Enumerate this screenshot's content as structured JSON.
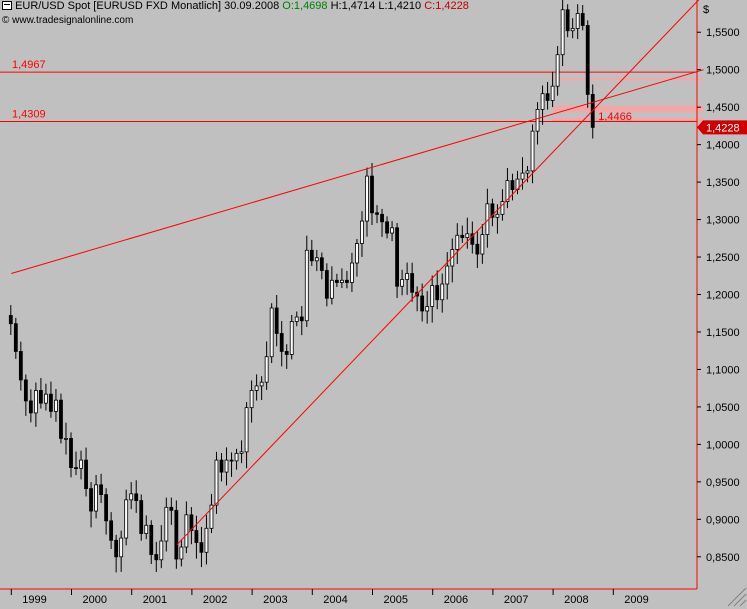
{
  "header": {
    "symbol": "EUR/USD Spot [EURUSD FXD",
    "period": "Monatlich]",
    "date": "30.09.2008",
    "open_label": "O:",
    "open": "1,4698",
    "high_label": "H:",
    "high": "1,4714",
    "low_label": "L:",
    "low": "1,4210",
    "close_label": "C:",
    "close": "1,4228",
    "source": "www.tradesignalonline.com"
  },
  "colors": {
    "background": "#c0c0c0",
    "line": "#ff0000",
    "candle": "#000000",
    "candle_up_fill": "#ffffff",
    "zone": "#f2a8a8"
  },
  "chart_data": {
    "type": "candlestick",
    "title": "",
    "currency_unit": "$",
    "y_ticks": [
      0.85,
      0.9,
      0.95,
      1.0,
      1.05,
      1.1,
      1.15,
      1.2,
      1.25,
      1.3,
      1.35,
      1.4,
      1.45,
      1.5,
      1.55
    ],
    "y_tick_labels": [
      "0,8500",
      "0,9000",
      "0,9500",
      "1,0000",
      "1,0500",
      "1,1000",
      "1,1500",
      "1,2000",
      "1,2500",
      "1,3000",
      "1,3500",
      "1,4000",
      "1,4500",
      "1,5000",
      "1,5500"
    ],
    "ylim": [
      0.807,
      1.585
    ],
    "x_years": [
      "1999",
      "2000",
      "2001",
      "2002",
      "2003",
      "2004",
      "2005",
      "2006",
      "2007",
      "2008",
      "2009"
    ],
    "xlim": [
      "1999-01",
      "2010-07"
    ],
    "current_price_label": "1,4228",
    "closes": [
      1.161,
      1.124,
      1.086,
      1.058,
      1.042,
      1.072,
      1.055,
      1.067,
      1.044,
      1.059,
      1.008,
      1.008,
      0.969,
      0.968,
      0.979,
      0.941,
      0.911,
      0.946,
      0.933,
      0.898,
      0.872,
      0.85,
      0.875,
      0.926,
      0.934,
      0.925,
      0.881,
      0.892,
      0.853,
      0.846,
      0.871,
      0.916,
      0.912,
      0.847,
      0.863,
      0.906,
      0.885,
      0.869,
      0.856,
      0.888,
      0.919,
      0.979,
      0.963,
      0.979,
      0.978,
      0.988,
      0.99,
      1.049,
      1.072,
      1.078,
      1.083,
      1.117,
      1.182,
      1.148,
      1.124,
      1.12,
      1.164,
      1.17,
      1.165,
      1.259,
      1.245,
      1.249,
      1.232,
      1.195,
      1.219,
      1.216,
      1.219,
      1.216,
      1.242,
      1.268,
      1.298,
      1.358,
      1.309,
      1.307,
      1.297,
      1.282,
      1.289,
      1.211,
      1.22,
      1.228,
      1.203,
      1.198,
      1.178,
      1.184,
      1.212,
      1.193,
      1.214,
      1.238,
      1.26,
      1.279,
      1.276,
      1.281,
      1.267,
      1.254,
      1.28,
      1.321,
      1.303,
      1.307,
      1.324,
      1.352,
      1.34,
      1.354,
      1.362,
      1.365,
      1.418,
      1.447,
      1.468,
      1.459,
      1.478,
      1.52,
      1.58,
      1.552,
      1.555,
      1.575,
      1.559,
      1.467,
      1.423
    ],
    "years_lines": [
      {
        "from": {
          "date": "1999-01",
          "value": 1.228
        },
        "to": {
          "date": "2010-07",
          "value": 1.5
        }
      },
      {
        "from": {
          "date": "2001-10",
          "value": 0.866
        },
        "to": {
          "date": "2010-07",
          "value": 1.6
        }
      }
    ],
    "horizontal_lines": [
      {
        "value": 1.4967,
        "label": "1,4967"
      },
      {
        "value": 1.4309,
        "label": "1,4309"
      }
    ],
    "zones": [
      {
        "from_date": "2008-01",
        "to_date": "2010-07",
        "low": 1.486,
        "high": 1.489
      },
      {
        "from_date": "2008-01",
        "to_date": "2010-07",
        "low": 1.443,
        "high": 1.452
      },
      {
        "from_date": "2008-01",
        "to_date": "2010-07",
        "low": 1.431,
        "high": 1.436
      }
    ],
    "annotations": [
      {
        "text": "1,4466",
        "date": "2008-10",
        "value": 1.438
      }
    ]
  }
}
